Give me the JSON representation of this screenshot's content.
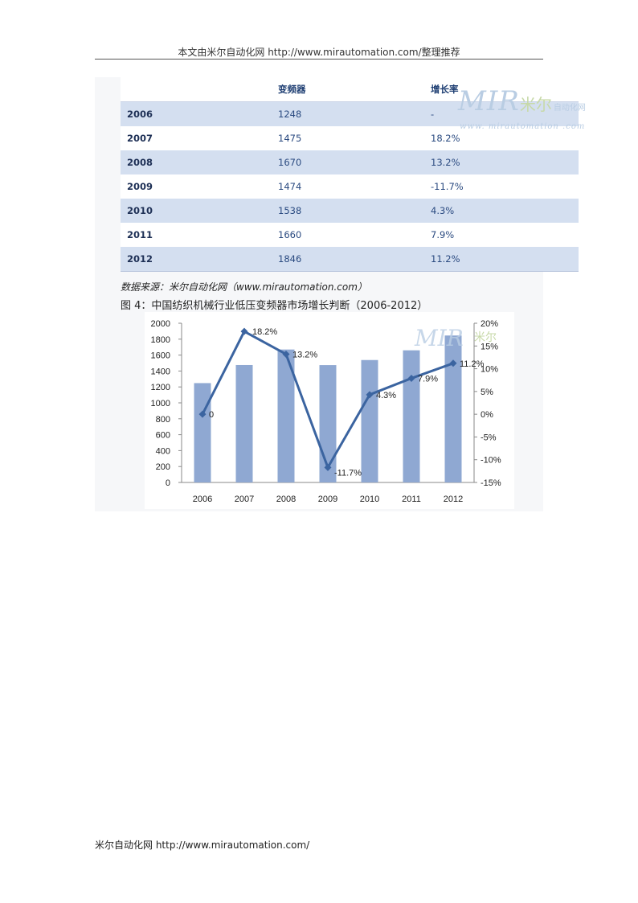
{
  "header": {
    "text": "本文由米尔自动化网 http://www.mirautomation.com/整理推荐"
  },
  "table": {
    "columns": [
      "",
      "变频器",
      "增长率"
    ],
    "rows": [
      {
        "year": "2006",
        "value": "1248",
        "rate": "-"
      },
      {
        "year": "2007",
        "value": "1475",
        "rate": "18.2%"
      },
      {
        "year": "2008",
        "value": "1670",
        "rate": "13.2%"
      },
      {
        "year": "2009",
        "value": "1474",
        "rate": "-11.7%"
      },
      {
        "year": "2010",
        "value": "1538",
        "rate": "4.3%"
      },
      {
        "year": "2011",
        "value": "1660",
        "rate": "7.9%"
      },
      {
        "year": "2012",
        "value": "1846",
        "rate": "11.2%"
      }
    ]
  },
  "watermark": {
    "logo": "MIR",
    "cn": "米尔",
    "cn_sub": "自动化网",
    "url": "www. mirautomation .com"
  },
  "source": "数据来源：米尔自动化网（www.mirautomation.com）",
  "figure_caption": "图 4：中国纺织机械行业低压变频器市场增长判断（2006-2012）",
  "chart_data": {
    "type": "bar",
    "categories": [
      "2006",
      "2007",
      "2008",
      "2009",
      "2010",
      "2011",
      "2012"
    ],
    "series": [
      {
        "type": "bar",
        "axis": "left",
        "values": [
          1248,
          1475,
          1670,
          1474,
          1538,
          1660,
          1846
        ],
        "color": "#8fa8d2"
      },
      {
        "type": "line",
        "axis": "right",
        "values": [
          0,
          18.2,
          13.2,
          -11.7,
          4.3,
          7.9,
          11.2
        ],
        "labels": [
          "0",
          "18.2%",
          "13.2%",
          "-11.7%",
          "4.3%",
          "7.9%",
          "11.2%"
        ],
        "color": "#3b64a0"
      }
    ],
    "y_left": {
      "range": [
        0,
        2000
      ],
      "ticks": [
        "0",
        "200",
        "400",
        "600",
        "800",
        "1000",
        "1200",
        "1400",
        "1600",
        "1800",
        "2000"
      ]
    },
    "y_right": {
      "range": [
        -15,
        20
      ],
      "ticks": [
        "-15%",
        "-10%",
        "-5%",
        "0%",
        "5%",
        "10%",
        "15%",
        "20%"
      ]
    },
    "grid": false,
    "legend": "none"
  },
  "footer": {
    "text": "米尔自动化网 http://www.mirautomation.com/"
  }
}
